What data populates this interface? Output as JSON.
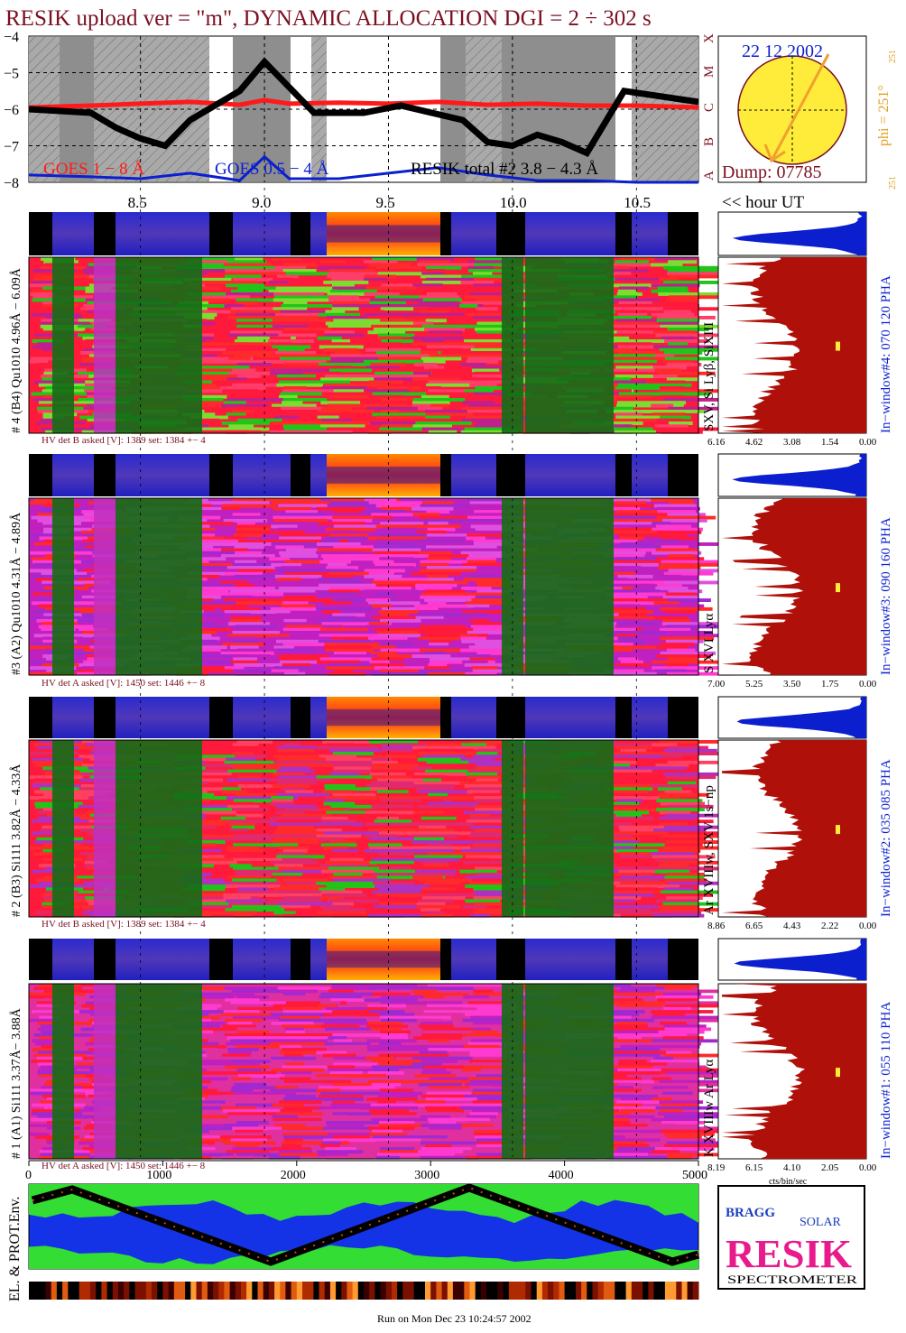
{
  "title": "RESIK upload ver = \"m\", DYNAMIC ALLOCATION  DGI =   2 ÷ 302 s",
  "goes_panel": {
    "y_ticks": [
      "−4",
      "−5",
      "−6",
      "−7",
      "−8"
    ],
    "class_letters": [
      "X",
      "M",
      "C",
      "B",
      "A"
    ],
    "legend": {
      "goes_long": "GOES 1 − 8 Å",
      "goes_short": "GOES 0.5 − 4 Å",
      "resik_total": "RESIK total #2 3.8 − 4.3 Å"
    },
    "colors": {
      "goes_long": "#ff1a1a",
      "goes_short": "#0b1fcf",
      "resik": "#000000"
    }
  },
  "sun_panel": {
    "date": "22 12 2002",
    "dump": "Dump: 07785",
    "phi_label": "phi = 251°",
    "phi_small_top": "251",
    "phi_small_bottom": "251"
  },
  "hour_axis": {
    "ticks": [
      "8.5",
      "9.0",
      "9.5",
      "10.0",
      "10.5"
    ],
    "label": "<< hour UT"
  },
  "chart_data": [
    {
      "type": "line",
      "title": "RESIK upload ver = \"m\", DYNAMIC ALLOCATION  DGI =   2 ÷ 302 s",
      "xlabel": "hour UT",
      "ylabel": "",
      "xlim": [
        8.05,
        10.75
      ],
      "ylim": [
        -8,
        -4
      ],
      "series": [
        {
          "name": "GOES 1 − 8 Å",
          "x": [
            8.05,
            8.3,
            8.5,
            8.7,
            8.9,
            9.0,
            9.1,
            9.3,
            9.5,
            9.7,
            9.9,
            10.1,
            10.3,
            10.5,
            10.75
          ],
          "y": [
            -5.95,
            -5.9,
            -5.85,
            -5.8,
            -5.88,
            -5.75,
            -5.85,
            -5.82,
            -5.85,
            -5.8,
            -5.88,
            -5.85,
            -5.9,
            -5.9,
            -5.95
          ]
        },
        {
          "name": "GOES 0.5 − 4 Å",
          "x": [
            8.05,
            8.3,
            8.5,
            8.7,
            8.9,
            9.0,
            9.1,
            9.3,
            9.5,
            9.7,
            9.9,
            10.1,
            10.3,
            10.5,
            10.75
          ],
          "y": [
            -7.8,
            -7.85,
            -7.9,
            -7.75,
            -7.95,
            -7.3,
            -7.9,
            -7.9,
            -7.75,
            -7.6,
            -7.8,
            -7.95,
            -7.95,
            -8.0,
            -8.0
          ]
        },
        {
          "name": "RESIK total #2 3.8 − 4.3 Å",
          "x": [
            8.05,
            8.3,
            8.4,
            8.5,
            8.6,
            8.7,
            8.9,
            9.0,
            9.2,
            9.4,
            9.55,
            9.8,
            9.9,
            10.0,
            10.1,
            10.2,
            10.3,
            10.45,
            10.75
          ],
          "y": [
            -6.0,
            -6.1,
            -6.5,
            -6.8,
            -7.0,
            -6.3,
            -5.5,
            -4.7,
            -6.1,
            -6.1,
            -5.9,
            -6.3,
            -6.9,
            -7.0,
            -6.7,
            -6.9,
            -7.2,
            -5.5,
            -5.8
          ]
        }
      ]
    },
    {
      "type": "heatmap",
      "title": "# 4 (B4) Qu1010 4.96Å − 6.09Å",
      "side_label": "SXV, Si Lyβ, SiXIII",
      "window_label": "In−window#4:  070 120 PHA",
      "hv_text": "HV det B asked [V]:  1389 set:  1384  +−   4",
      "hist_ticks": [
        "6.16",
        "4.62",
        "3.08",
        "1.54",
        "0.00"
      ]
    },
    {
      "type": "heatmap",
      "title": "#3 (A2) Qu1010  4.31Å − 4.89Å",
      "side_label": "S XVI Lyα",
      "window_label": "In−window#3:  090 160 PHA",
      "hv_text": "HV det A asked [V]:  1450 set:  1446  +−    8",
      "hist_ticks": [
        "7.00",
        "5.25",
        "3.50",
        "1.75",
        "0.00"
      ]
    },
    {
      "type": "heatmap",
      "title": "# 2 (B3) Si111  3.82Å − 4.33Å",
      "side_label": "Ar XVIIIw,  SXV 1s−np",
      "window_label": "In−window#2:  035 085 PHA",
      "hv_text": "HV det B asked [V]:  1389 set:  1384  +−   4",
      "hist_ticks": [
        "8.86",
        "6.65",
        "4.43",
        "2.22",
        "0.00"
      ]
    },
    {
      "type": "heatmap",
      "title": "# 1 (A1) Si111  3.37Å−  3.88Å",
      "side_label": "K XVIIIw  Ar Lyα",
      "window_label": "In−window#1:  055 110 PHA",
      "hv_text": "HV det A asked [V]:  1450 set:  1446  +−    8",
      "hist_ticks": [
        "8.19",
        "6.15",
        "4.10",
        "2.05",
        "0.00"
      ],
      "hist_xlabel": "cts/bin/sec"
    }
  ],
  "bin_axis": {
    "ticks": [
      "0",
      "1000",
      "2000",
      "3000",
      "4000",
      "5000"
    ]
  },
  "env_label": "EL. & PROT.Env.",
  "logo": {
    "word": "RESIK",
    "bragg": "BRAGG",
    "solar": "SOLAR",
    "spectrometer": "SPECTROMETER"
  },
  "footer": "Run on Mon Dec 23 10:24:57 2002"
}
